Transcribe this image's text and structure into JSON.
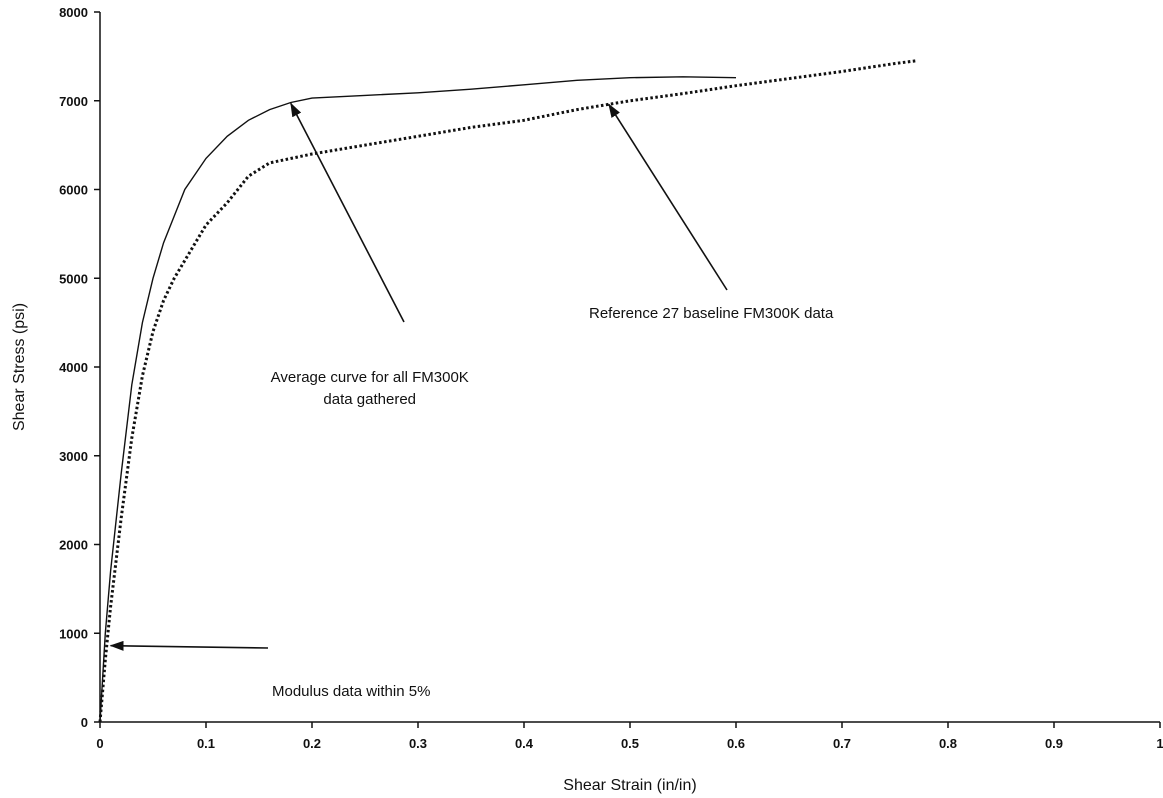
{
  "chart_data": {
    "type": "line",
    "title": "",
    "xlabel": "Shear Strain (in/in)",
    "ylabel": "Shear Stress (psi)",
    "xlim": [
      0,
      1
    ],
    "ylim": [
      0,
      8000
    ],
    "x_ticks": [
      "0",
      "0.1",
      "0.2",
      "0.3",
      "0.4",
      "0.5",
      "0.6",
      "0.7",
      "0.8",
      "0.9",
      "1"
    ],
    "y_ticks": [
      "0",
      "1000",
      "2000",
      "3000",
      "4000",
      "5000",
      "6000",
      "7000",
      "8000"
    ],
    "grid": false,
    "legend": "none",
    "series": [
      {
        "style": "solid",
        "color": "#111111",
        "x": [
          0,
          0.005,
          0.01,
          0.02,
          0.03,
          0.04,
          0.05,
          0.06,
          0.07,
          0.08,
          0.1,
          0.12,
          0.14,
          0.16,
          0.18,
          0.2,
          0.25,
          0.3,
          0.35,
          0.4,
          0.45,
          0.5,
          0.55,
          0.6
        ],
        "y": [
          0,
          1000,
          1700,
          2800,
          3800,
          4500,
          5000,
          5400,
          5700,
          6000,
          6350,
          6600,
          6780,
          6900,
          6980,
          7030,
          7060,
          7090,
          7130,
          7180,
          7230,
          7260,
          7270,
          7260
        ]
      },
      {
        "style": "dotted",
        "color": "#111111",
        "x": [
          0,
          0.005,
          0.01,
          0.02,
          0.03,
          0.04,
          0.05,
          0.06,
          0.07,
          0.08,
          0.1,
          0.12,
          0.14,
          0.16,
          0.2,
          0.25,
          0.3,
          0.35,
          0.4,
          0.45,
          0.5,
          0.55,
          0.6,
          0.65,
          0.7,
          0.75,
          0.77
        ],
        "y": [
          0,
          700,
          1300,
          2300,
          3200,
          3900,
          4400,
          4750,
          5000,
          5200,
          5600,
          5850,
          6150,
          6300,
          6400,
          6500,
          6600,
          6700,
          6780,
          6900,
          7000,
          7080,
          7170,
          7250,
          7330,
          7420,
          7450
        ]
      }
    ],
    "annotations": [
      {
        "lines": [
          "Average curve for all FM300K",
          "data gathered"
        ],
        "target": [
          0.18,
          6970
        ]
      },
      {
        "lines": [
          "Reference 27 baseline FM300K data"
        ],
        "target": [
          0.48,
          6960
        ]
      },
      {
        "lines": [
          "Modulus data within 5%"
        ],
        "target": [
          0.01,
          860
        ]
      }
    ]
  }
}
